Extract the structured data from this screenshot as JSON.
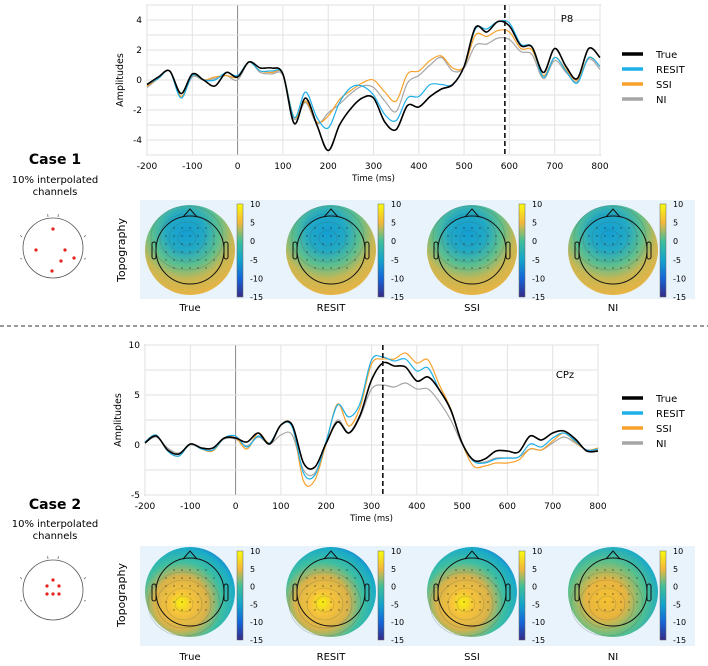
{
  "colors": {
    "True": "#000000",
    "RESIT": "#1fb0e8",
    "SSI": "#f7a12b",
    "NI": "#a6a6a6"
  },
  "cases": [
    {
      "title": "Case 1",
      "subtitle_line1": "10% interpolated channels",
      "subtitle_line2": "channels",
      "subtitle_a": "10% interpolated",
      "topography_label": "Topography",
      "topo_labels": [
        "True",
        "RESIT",
        "SSI",
        "NI"
      ],
      "colorbar_ticks": [
        "10",
        "5",
        "0",
        "-5",
        "-10",
        "-15"
      ]
    },
    {
      "title": "Case 2",
      "subtitle_a": "10% interpolated",
      "subtitle_line2": "channels",
      "topography_label": "Topography",
      "topo_labels": [
        "True",
        "RESIT",
        "SSI",
        "NI"
      ],
      "colorbar_ticks": [
        "10",
        "5",
        "0",
        "-5",
        "-10",
        "-15"
      ]
    }
  ],
  "chart_data": [
    {
      "type": "line",
      "title": "P8",
      "xlabel": "Time (ms)",
      "ylabel": "Amplitudes",
      "xlim": [
        -200,
        800
      ],
      "ylim": [
        -5,
        5
      ],
      "xticks": [
        -200,
        -100,
        0,
        100,
        200,
        300,
        400,
        500,
        600,
        700,
        800
      ],
      "yticks": [
        -4,
        -2,
        0,
        2,
        4
      ],
      "grid": true,
      "marker_line_x": 590,
      "legend_position": "right",
      "x": [
        -200,
        -175,
        -150,
        -125,
        -100,
        -75,
        -50,
        -25,
        0,
        25,
        50,
        75,
        100,
        125,
        150,
        175,
        200,
        225,
        250,
        275,
        300,
        325,
        350,
        375,
        400,
        425,
        450,
        475,
        500,
        525,
        550,
        575,
        600,
        625,
        650,
        675,
        700,
        725,
        750,
        775,
        800
      ],
      "series": [
        {
          "name": "True",
          "values": [
            -0.3,
            0.2,
            0.6,
            -0.9,
            0.4,
            0,
            -0.4,
            0.5,
            0.2,
            1.2,
            0.8,
            0.8,
            0.4,
            -2.9,
            -1.2,
            -3,
            -4.7,
            -3,
            -1.9,
            -1.2,
            -1.2,
            -2.8,
            -3.3,
            -1.7,
            -1.8,
            -1.1,
            -0.6,
            -0.3,
            0.9,
            3.5,
            3.2,
            3.9,
            3.6,
            2.3,
            2.2,
            0.5,
            2.1,
            0.9,
            0.1,
            2.1,
            1.5
          ]
        },
        {
          "name": "RESIT",
          "values": [
            -0.3,
            0.1,
            0.6,
            -1.2,
            0.3,
            0,
            0,
            0.5,
            0.3,
            1.2,
            0.6,
            0.6,
            0.4,
            -2.5,
            -0.8,
            -2.5,
            -3.2,
            -1.5,
            -0.5,
            -0.4,
            -1.0,
            -2.3,
            -2.7,
            -1.2,
            -1.1,
            -0.3,
            -0.3,
            -0.3,
            0.9,
            3.4,
            3.4,
            3.9,
            3.8,
            2.4,
            2.2,
            0.2,
            1.5,
            0.6,
            -0.2,
            1.5,
            0.9
          ]
        },
        {
          "name": "SSI",
          "values": [
            -0.4,
            0.1,
            0.6,
            -1.1,
            0.3,
            0,
            0.2,
            0.3,
            0.2,
            1.2,
            0.6,
            0.5,
            0.4,
            -2.5,
            -1.4,
            -2.8,
            -2.4,
            -1.3,
            -0.7,
            -0.2,
            0,
            -0.8,
            -1.4,
            0.4,
            0.6,
            1.3,
            1.6,
            0.8,
            0.9,
            3.0,
            2.9,
            3.3,
            3.2,
            2.1,
            2,
            0.3,
            1.5,
            0.7,
            0,
            1.5,
            0.9
          ]
        },
        {
          "name": "NI",
          "values": [
            -0.5,
            0.1,
            0.6,
            -1.1,
            0.2,
            0,
            0.1,
            0.3,
            0,
            1.2,
            0.5,
            0.4,
            0.3,
            -2.6,
            -1.5,
            -2.9,
            -2.2,
            -1.6,
            -0.9,
            -0.4,
            -0.5,
            -1.4,
            -2.1,
            -0.2,
            0.3,
            1.0,
            1.5,
            0.6,
            0.8,
            2.3,
            2.4,
            2.8,
            2.7,
            1.9,
            1.7,
            0.1,
            1.3,
            0.5,
            -0.1,
            1.4,
            0.7
          ]
        }
      ]
    },
    {
      "type": "line",
      "title": "CPz",
      "xlabel": "Time (ms)",
      "ylabel": "Amplitudes",
      "xlim": [
        -200,
        800
      ],
      "ylim": [
        -5,
        10
      ],
      "xticks": [
        -200,
        -100,
        0,
        100,
        200,
        300,
        400,
        500,
        600,
        700,
        800
      ],
      "yticks": [
        -5,
        0,
        5,
        10
      ],
      "grid": true,
      "marker_line_x": 325,
      "legend_position": "right",
      "x": [
        -200,
        -175,
        -150,
        -125,
        -100,
        -75,
        -50,
        -25,
        0,
        25,
        50,
        75,
        100,
        125,
        150,
        175,
        200,
        225,
        250,
        275,
        300,
        325,
        350,
        375,
        400,
        425,
        450,
        475,
        500,
        525,
        550,
        575,
        600,
        625,
        650,
        675,
        700,
        725,
        750,
        775,
        800
      ],
      "series": [
        {
          "name": "True",
          "values": [
            0.2,
            0.9,
            -0.5,
            -0.9,
            0.1,
            -0.3,
            -0.3,
            0.7,
            0.7,
            0.3,
            1.2,
            0.1,
            2.0,
            2.0,
            -1.8,
            -2.2,
            0.2,
            2.3,
            1.2,
            3,
            6.5,
            8.2,
            7.9,
            7.8,
            6.4,
            6.8,
            5.5,
            3.5,
            0.2,
            -1.5,
            -1.4,
            -0.6,
            -0.6,
            -0.7,
            0.9,
            0.5,
            1.2,
            1.4,
            0.6,
            -0.6,
            -0.6
          ]
        },
        {
          "name": "RESIT",
          "values": [
            0.3,
            1.0,
            -0.6,
            -1.1,
            0.1,
            -0.4,
            -0.5,
            0.7,
            0.9,
            -0.2,
            0.9,
            0.2,
            2.0,
            1.8,
            -2.8,
            -3.0,
            0.4,
            4.0,
            2.8,
            4.2,
            8.5,
            8.8,
            8.4,
            8.6,
            7.4,
            7.7,
            5.5,
            3.5,
            0.2,
            -1.6,
            -1.8,
            -1.4,
            -1.3,
            -1.2,
            0.1,
            -0.2,
            0.7,
            1.2,
            0.4,
            -0.5,
            -0.4
          ]
        },
        {
          "name": "SSI",
          "values": [
            0.3,
            1.0,
            -0.6,
            -1.1,
            0.1,
            -0.4,
            -0.6,
            0.7,
            0.7,
            -0.4,
            1.2,
            0.2,
            2.0,
            1.9,
            -3.6,
            -3.5,
            0.2,
            4.1,
            1.9,
            3.8,
            8.1,
            8.6,
            8.6,
            9.2,
            8.2,
            8.5,
            6,
            3.6,
            0.2,
            -2.1,
            -2.1,
            -1.8,
            -1.8,
            -1.5,
            -0.4,
            -0.5,
            0.4,
            1.2,
            0.3,
            -0.5,
            -0.3
          ]
        },
        {
          "name": "NI",
          "values": [
            0.2,
            0.8,
            -0.3,
            -0.8,
            0,
            -0.3,
            -0.3,
            0.6,
            0.6,
            -0.1,
            0.8,
            0.1,
            1.0,
            1.0,
            -2.5,
            -2.8,
            0.1,
            2.5,
            1.2,
            2.8,
            5.6,
            6.0,
            5.8,
            6.2,
            5.6,
            5.6,
            4.3,
            2.5,
            0.1,
            -1.6,
            -1.7,
            -1.3,
            -1.3,
            -1.2,
            -0.4,
            -0.5,
            0.2,
            0.8,
            0.2,
            -0.5,
            -0.5
          ]
        }
      ]
    }
  ]
}
